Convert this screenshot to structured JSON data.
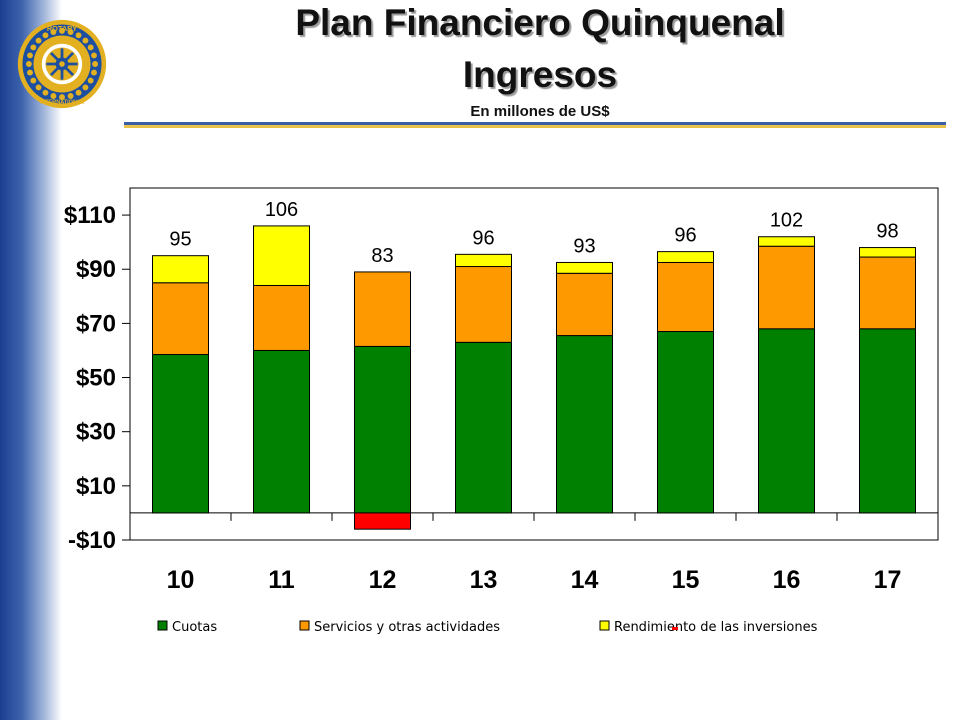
{
  "slide": {
    "title_line1": "Plan Financiero Quinquenal",
    "title_line2": "Ingresos",
    "subtitle": "En millones de US$",
    "logo_text_top": "ROTARY",
    "logo_text_bottom": "INTERNATIONAL"
  },
  "colors": {
    "band": "#1b3f8f",
    "Cuotas": "#008000",
    "Servicios y otras actividades": "#ff9900",
    "Rendimiento de las inversiones": "#ffff00",
    "negative": "#ff0000",
    "logo_gold": "#e3b021",
    "logo_blue": "#1d4fa0"
  },
  "chart_data": {
    "type": "bar",
    "stacked": true,
    "categories": [
      "10",
      "11",
      "12",
      "13",
      "14",
      "15",
      "16",
      "17"
    ],
    "series": [
      {
        "name": "Cuotas",
        "values": [
          58.5,
          60,
          61.5,
          63,
          65.5,
          67,
          68,
          68
        ]
      },
      {
        "name": "Servicios y otras actividades",
        "values": [
          26.5,
          24,
          27.5,
          28,
          23,
          25.5,
          30.5,
          26.5
        ]
      },
      {
        "name": "Rendimiento de las inversiones",
        "values": [
          10,
          22,
          -6,
          4.5,
          4,
          4,
          3.5,
          3.5
        ]
      }
    ],
    "totals": [
      "95",
      "106",
      "83",
      "96",
      "93",
      "96",
      "102",
      "98"
    ],
    "ylim": [
      -10,
      120
    ],
    "yticks": [
      -10,
      10,
      30,
      50,
      70,
      90,
      110
    ],
    "ytick_labels": [
      "-$10",
      "$10",
      "$30",
      "$50",
      "$70",
      "$90",
      "$110"
    ],
    "legend_position": "bottom",
    "grid": false
  }
}
